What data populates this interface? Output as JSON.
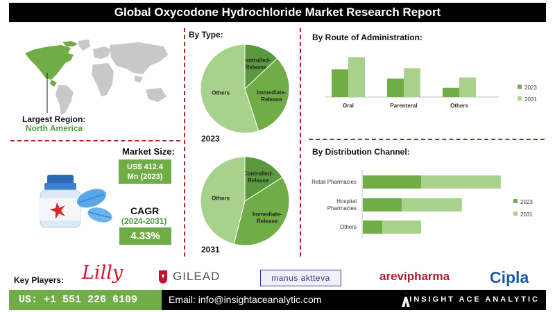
{
  "header": {
    "title": "Global Oxycodone Hydrochloride Market Research Report"
  },
  "region": {
    "label": "Largest Region:",
    "value": "North America"
  },
  "market": {
    "size_label": "Market Size:",
    "size_value_line1": "US$ 412.4",
    "size_value_line2": "Mn (2023)",
    "cagr_label": "CAGR",
    "cagr_period": "(2024-2031)",
    "cagr_value": "4.33%"
  },
  "type_section": {
    "title": "By Type:",
    "year_top": "2023",
    "year_bottom": "2031"
  },
  "route_section": {
    "title": "By  Route of Administration:"
  },
  "distribution_section": {
    "title": "By Distribution Channel:"
  },
  "key_players": {
    "label": "Key Players:",
    "logos": [
      "Lilly",
      "GILEAD",
      "manus aktteva",
      "arevipharma",
      "Cipla"
    ]
  },
  "footer": {
    "phone": "US: +1 551 226 6109",
    "email": "Email: info@insightaceanalytic.com",
    "brand": "INSIGHT ACE ANALYTIC"
  },
  "colors": {
    "dark_green": "#5a9a3e",
    "light_green": "#a9d18e",
    "mid_green": "#70ad47",
    "pale_green": "#8cc66b",
    "accent_red": "#b22222"
  },
  "chart_data": [
    {
      "type": "pie",
      "title": "By Type:",
      "year": "2023",
      "labels": [
        "Controlled-Release",
        "Immediate-Release",
        "Others"
      ],
      "values": [
        13,
        32,
        55
      ]
    },
    {
      "type": "pie",
      "title": "By Type:",
      "year": "2031",
      "labels": [
        "Controlled-Release",
        "Immediate-Release",
        "Others"
      ],
      "values": [
        16,
        38,
        46
      ]
    },
    {
      "type": "bar",
      "title": "By  Route of Administration:",
      "categories": [
        "Oral",
        "Parenteral",
        "Others"
      ],
      "series": [
        {
          "name": "2023",
          "values": [
            45,
            30,
            15
          ]
        },
        {
          "name": "2031",
          "values": [
            65,
            47,
            32
          ]
        }
      ],
      "ylim": [
        0,
        70
      ],
      "legend": "right"
    },
    {
      "type": "bar",
      "orientation": "horizontal-stacked",
      "title": "By Distribution Channel:",
      "categories": [
        "Retail Pharmacies",
        "Hospital Pharmacies",
        "Others"
      ],
      "series": [
        {
          "name": "2023",
          "values": [
            60,
            40,
            20
          ]
        },
        {
          "name": "2031",
          "values": [
            82,
            62,
            40
          ]
        }
      ],
      "xlim": [
        0,
        150
      ],
      "legend": "right"
    }
  ]
}
